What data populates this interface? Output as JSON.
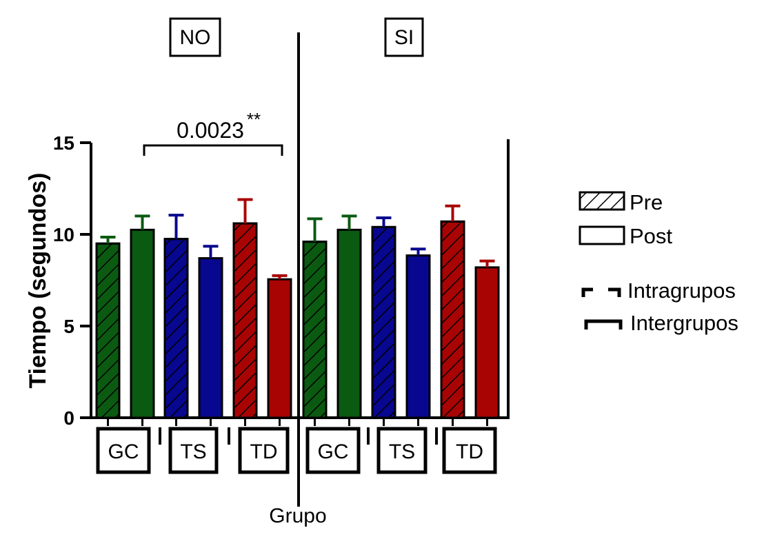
{
  "chart_data": {
    "type": "bar",
    "ylabel": "Tiempo (segundos)",
    "xlabel": "Grupo",
    "ylim": [
      0,
      15
    ],
    "yticks": [
      0,
      5,
      10,
      15
    ],
    "panels": [
      {
        "label": "NO",
        "groups": [
          {
            "label": "GC",
            "color": "#0b5a12",
            "pre": 9.5,
            "pre_err": 0.35,
            "post": 10.25,
            "post_err": 0.75
          },
          {
            "label": "TS",
            "color": "#07078f",
            "pre": 9.75,
            "pre_err": 1.3,
            "post": 8.7,
            "post_err": 0.65
          },
          {
            "label": "TD",
            "color": "#a80404",
            "pre": 10.6,
            "pre_err": 1.3,
            "post": 7.55,
            "post_err": 0.2
          }
        ]
      },
      {
        "label": "SI",
        "groups": [
          {
            "label": "GC",
            "color": "#0b5a12",
            "pre": 9.6,
            "pre_err": 1.25,
            "post": 10.25,
            "post_err": 0.75
          },
          {
            "label": "TS",
            "color": "#07078f",
            "pre": 10.4,
            "pre_err": 0.5,
            "post": 8.85,
            "post_err": 0.35
          },
          {
            "label": "TD",
            "color": "#a80404",
            "pre": 10.7,
            "pre_err": 0.85,
            "post": 8.2,
            "post_err": 0.35
          }
        ]
      }
    ],
    "annotation": {
      "text": "0.0023",
      "stars": "**"
    },
    "legend": {
      "pre": "Pre",
      "post": "Post",
      "intra": "Intragrupos",
      "inter": "Intergrupos"
    }
  }
}
